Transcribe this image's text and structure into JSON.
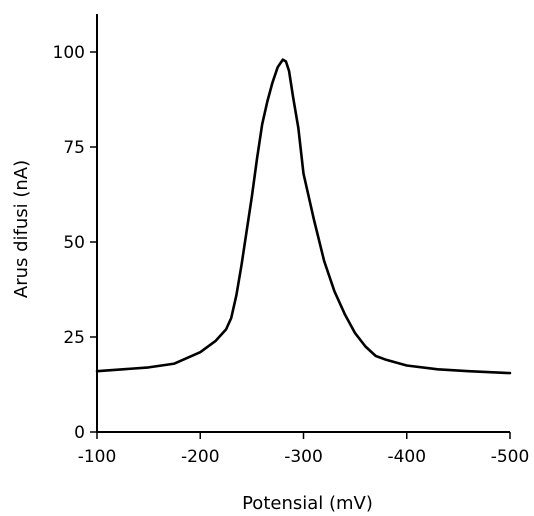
{
  "chart_data": {
    "type": "line",
    "title": "",
    "xlabel": "Potensial (mV)",
    "ylabel": "Arus difusi (nA)",
    "xlim": [
      -100,
      -500
    ],
    "ylim": [
      0,
      110
    ],
    "x_ticks": [
      -100,
      -200,
      -300,
      -400,
      -500
    ],
    "x_tick_labels": [
      "-100",
      "-200",
      "-300",
      "-400",
      "-500"
    ],
    "y_ticks": [
      0,
      25,
      50,
      75,
      100
    ],
    "y_tick_labels": [
      "0",
      "25",
      "50",
      "75",
      "100"
    ],
    "grid": false,
    "legend": "none",
    "line_color": "#000000",
    "series": [
      {
        "x": [
          -100,
          -150,
          -175,
          -200,
          -215,
          -225,
          -230,
          -235,
          -240,
          -245,
          -250,
          -255,
          -260,
          -265,
          -270,
          -275,
          -280,
          -283,
          -286,
          -290,
          -295,
          -300,
          -310,
          -320,
          -330,
          -340,
          -350,
          -360,
          -370,
          -380,
          -400,
          -430,
          -460,
          -500
        ],
        "y": [
          16,
          17,
          18,
          21,
          24,
          27,
          30,
          36,
          44,
          53,
          62,
          72,
          81,
          87,
          92,
          96,
          98,
          97.5,
          95,
          88,
          80,
          68,
          56,
          45,
          37,
          31,
          26,
          22.5,
          20,
          19,
          17.5,
          16.5,
          16,
          15.5
        ]
      }
    ]
  }
}
